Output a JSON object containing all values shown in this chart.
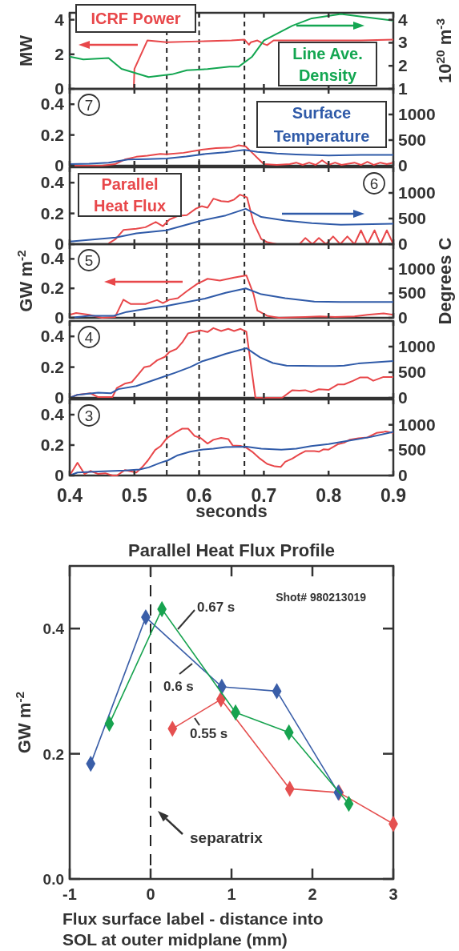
{
  "chart_data": [
    {
      "type": "line",
      "xlim": [
        0.4,
        0.9
      ],
      "xticks": [
        0.4,
        0.5,
        0.6,
        0.7,
        0.8,
        0.9
      ],
      "tick_labels": "y",
      "ylim": [
        0,
        4.4
      ],
      "yticks": [
        0,
        2,
        4
      ],
      "y2lim": [
        1,
        4.3
      ],
      "y2ticks": [
        1,
        2,
        3,
        4
      ],
      "ylabel": "MW",
      "y2label": "10$^{20}$ m$^{-3}$",
      "ref_lines": [
        {
          "axis": "x",
          "value": 0.55,
          "line_style": "dashed",
          "color": "#222222"
        },
        {
          "axis": "x",
          "value": 0.6,
          "line_style": "dashed",
          "color": "#222222"
        },
        {
          "axis": "x",
          "value": 0.67,
          "line_style": "dashed",
          "color": "#222222"
        }
      ],
      "series": [
        {
          "name": "ICRF Power",
          "color": "#e8474a",
          "x": [
            0.499,
            0.5,
            0.52,
            0.55,
            0.6,
            0.65,
            0.67,
            0.677,
            0.68,
            0.69,
            0.7,
            0.705,
            0.715,
            0.75,
            0.8,
            0.85,
            0.9
          ],
          "values": [
            0,
            1.15,
            2.8,
            2.7,
            2.75,
            2.8,
            2.85,
            2.55,
            2.7,
            2.8,
            2.6,
            2.53,
            2.8,
            2.8,
            2.8,
            2.8,
            2.85
          ]
        },
        {
          "name": "Line Ave. Density",
          "color": "#13a651",
          "axis": "y2",
          "x": [
            0.4,
            0.421,
            0.46,
            0.48,
            0.522,
            0.558,
            0.581,
            0.613,
            0.647,
            0.661,
            0.682,
            0.7,
            0.744,
            0.774,
            0.819,
            0.9
          ],
          "values": [
            2.4,
            2.28,
            2.34,
            1.87,
            1.51,
            1.63,
            1.81,
            1.86,
            1.96,
            1.96,
            2.4,
            3.1,
            3.74,
            4.06,
            4.25,
            3.96
          ]
        }
      ]
    },
    {
      "type": "line",
      "xlim": [
        0.4,
        0.9
      ],
      "xticks": [
        0.4,
        0.5,
        0.6,
        0.7,
        0.8,
        0.9
      ],
      "tick_labels": "y",
      "ylim": [
        0,
        0.5
      ],
      "yticks": [
        0,
        0.2,
        0.4
      ],
      "y2lim": [
        0,
        1500
      ],
      "y2ticks": [
        0,
        500,
        1000
      ],
      "annotations": [
        "7"
      ],
      "ref_lines": [
        {
          "axis": "x",
          "value": 0.55,
          "line_style": "dashed",
          "color": "#222222"
        },
        {
          "axis": "x",
          "value": 0.6,
          "line_style": "dashed",
          "color": "#222222"
        },
        {
          "axis": "x",
          "value": 0.67,
          "line_style": "dashed",
          "color": "#222222"
        }
      ],
      "series": [
        {
          "color": "#e8474a",
          "x": [
            0.4,
            0.45,
            0.47,
            0.485,
            0.503,
            0.52,
            0.54,
            0.549,
            0.576,
            0.604,
            0.626,
            0.65,
            0.661,
            0.672,
            0.682,
            0.696,
            0.7,
            0.72,
            0.74,
            0.75,
            0.76,
            0.77,
            0.78,
            0.79,
            0.8,
            0.81,
            0.82,
            0.84,
            0.85,
            0.86,
            0.87,
            0.88,
            0.89,
            0.9
          ],
          "values": [
            0,
            0,
            0.01,
            0.04,
            0.058,
            0.065,
            0.077,
            0.074,
            0.084,
            0.104,
            0.114,
            0.119,
            0.133,
            0.125,
            0.084,
            0.026,
            0.01,
            0.005,
            0.01,
            0.02,
            0.005,
            0.02,
            0.005,
            0.035,
            0.005,
            0.02,
            0.005,
            0.02,
            0.005,
            0.025,
            0.005,
            0.02,
            0.01,
            0.02
          ]
        },
        {
          "name": "Surface Temperature",
          "color": "#2f5aa8",
          "axis": "y2",
          "x": [
            0.4,
            0.43,
            0.46,
            0.49,
            0.52,
            0.55,
            0.58,
            0.61,
            0.64,
            0.67,
            0.69,
            0.72,
            0.75,
            0.8,
            0.85,
            0.9
          ],
          "values": [
            30,
            40,
            60,
            120,
            130,
            140,
            180,
            230,
            260,
            310,
            270,
            240,
            220,
            200,
            210,
            210
          ]
        }
      ]
    },
    {
      "type": "line",
      "xlim": [
        0.4,
        0.9
      ],
      "xticks": [
        0.4,
        0.5,
        0.6,
        0.7,
        0.8,
        0.9
      ],
      "tick_labels": "y",
      "ylim": [
        0,
        0.5
      ],
      "yticks": [
        0,
        0.2,
        0.4
      ],
      "y2lim": [
        0,
        1500
      ],
      "y2ticks": [
        0,
        500,
        1000
      ],
      "annotations": [
        "6"
      ],
      "ref_lines": [
        {
          "axis": "x",
          "value": 0.55,
          "line_style": "dashed",
          "color": "#222222"
        },
        {
          "axis": "x",
          "value": 0.6,
          "line_style": "dashed",
          "color": "#222222"
        },
        {
          "axis": "x",
          "value": 0.67,
          "line_style": "dashed",
          "color": "#222222"
        }
      ],
      "series": [
        {
          "name": "Parallel Heat Flux",
          "color": "#e8474a",
          "x": [
            0.46,
            0.471,
            0.483,
            0.503,
            0.517,
            0.533,
            0.544,
            0.554,
            0.567,
            0.581,
            0.595,
            0.604,
            0.613,
            0.622,
            0.634,
            0.645,
            0.654,
            0.663,
            0.674,
            0.684,
            0.696,
            0.705,
            0.72,
            0.755,
            0.764,
            0.775,
            0.785,
            0.796,
            0.807,
            0.818,
            0.829,
            0.84,
            0.85,
            0.86,
            0.871,
            0.88,
            0.89,
            0.9
          ],
          "values": [
            0.005,
            0.033,
            0.092,
            0.1,
            0.11,
            0.144,
            0.117,
            0.16,
            0.183,
            0.189,
            0.231,
            0.247,
            0.237,
            0.296,
            0.28,
            0.276,
            0.29,
            0.322,
            0.304,
            0.14,
            0.033,
            0.013,
            0,
            0,
            0.04,
            0,
            0.04,
            0,
            0.05,
            0,
            0.05,
            0,
            0.09,
            0,
            0.09,
            0,
            0.09,
            0
          ]
        },
        {
          "color": "#2f5aa8",
          "axis": "y2",
          "x": [
            0.4,
            0.471,
            0.503,
            0.549,
            0.604,
            0.641,
            0.672,
            0.696,
            0.733,
            0.774,
            0.819,
            0.9
          ],
          "values": [
            50,
            130,
            210,
            270,
            460,
            560,
            690,
            530,
            460,
            410,
            380,
            400
          ]
        }
      ]
    },
    {
      "type": "line",
      "xlim": [
        0.4,
        0.9
      ],
      "xticks": [
        0.4,
        0.5,
        0.6,
        0.7,
        0.8,
        0.9
      ],
      "tick_labels": "y",
      "ylim": [
        0,
        0.5
      ],
      "yticks": [
        0,
        0.2,
        0.4
      ],
      "y2lim": [
        0,
        1500
      ],
      "y2ticks": [
        0,
        500,
        1000
      ],
      "ylabel": "GW m$^{-2}$",
      "y2label": "Degrees C",
      "annotations": [
        "5"
      ],
      "ref_lines": [
        {
          "axis": "x",
          "value": 0.55,
          "line_style": "dashed",
          "color": "#222222"
        },
        {
          "axis": "x",
          "value": 0.6,
          "line_style": "dashed",
          "color": "#222222"
        },
        {
          "axis": "x",
          "value": 0.67,
          "line_style": "dashed",
          "color": "#222222"
        }
      ],
      "series": [
        {
          "color": "#e8474a",
          "x": [
            0.4,
            0.41,
            0.43,
            0.45,
            0.47,
            0.483,
            0.494,
            0.517,
            0.535,
            0.544,
            0.554,
            0.567,
            0.581,
            0.597,
            0.613,
            0.632,
            0.654,
            0.673,
            0.684,
            0.69,
            0.705,
            0.723,
            0.764,
            0.787,
            0.81,
            0.84,
            0.86,
            0.885,
            0.9
          ],
          "values": [
            0.02,
            0.033,
            0.02,
            0,
            0.005,
            0.123,
            0.094,
            0.094,
            0.12,
            0.1,
            0.123,
            0.133,
            0.181,
            0.23,
            0.265,
            0.253,
            0.273,
            0.288,
            0.161,
            0.049,
            0.014,
            0,
            0.005,
            0.01,
            0.005,
            0.01,
            0.02,
            0.03,
            0.02
          ]
        },
        {
          "color": "#2f5aa8",
          "axis": "y2",
          "x": [
            0.4,
            0.43,
            0.468,
            0.488,
            0.522,
            0.549,
            0.609,
            0.641,
            0.672,
            0.696,
            0.733,
            0.778,
            0.819,
            0.9
          ],
          "values": [
            0,
            40,
            40,
            120,
            190,
            240,
            390,
            510,
            600,
            480,
            400,
            330,
            320,
            320
          ]
        }
      ]
    },
    {
      "type": "line",
      "xlim": [
        0.4,
        0.9
      ],
      "xticks": [
        0.4,
        0.5,
        0.6,
        0.7,
        0.8,
        0.9
      ],
      "tick_labels": "y",
      "ylim": [
        0,
        0.5
      ],
      "yticks": [
        0,
        0.2,
        0.4
      ],
      "y2lim": [
        0,
        1500
      ],
      "y2ticks": [
        0,
        500,
        1000
      ],
      "annotations": [
        "4"
      ],
      "ref_lines": [
        {
          "axis": "x",
          "value": 0.55,
          "line_style": "dashed",
          "color": "#222222"
        },
        {
          "axis": "x",
          "value": 0.6,
          "line_style": "dashed",
          "color": "#222222"
        },
        {
          "axis": "x",
          "value": 0.67,
          "line_style": "dashed",
          "color": "#222222"
        }
      ],
      "series": [
        {
          "color": "#e8474a",
          "x": [
            0.4,
            0.412,
            0.432,
            0.444,
            0.466,
            0.473,
            0.485,
            0.496,
            0.503,
            0.515,
            0.524,
            0.535,
            0.547,
            0.554,
            0.565,
            0.574,
            0.583,
            0.602,
            0.613,
            0.622,
            0.634,
            0.645,
            0.654,
            0.664,
            0.673,
            0.687,
            0.728,
            0.744,
            0.755,
            0.764,
            0.773,
            0.785,
            0.8,
            0.814,
            0.824,
            0.838,
            0.849,
            0.86,
            0.869,
            0.884,
            0.9
          ],
          "values": [
            0,
            0.02,
            0.03,
            0.005,
            0.005,
            0.065,
            0.092,
            0.103,
            0.137,
            0.199,
            0.207,
            0.244,
            0.267,
            0.298,
            0.318,
            0.361,
            0.42,
            0.439,
            0.428,
            0.454,
            0.435,
            0.449,
            0.435,
            0.449,
            0.43,
            0,
            0,
            0.05,
            0.047,
            0.05,
            0.037,
            0.056,
            0.052,
            0.087,
            0.087,
            0.111,
            0.133,
            0.133,
            0.111,
            0.135,
            0.135
          ]
        },
        {
          "color": "#2f5aa8",
          "axis": "y2",
          "x": [
            0.4,
            0.412,
            0.444,
            0.464,
            0.475,
            0.503,
            0.549,
            0.563,
            0.586,
            0.604,
            0.627,
            0.641,
            0.673,
            0.694,
            0.714,
            0.735,
            0.783,
            0.81,
            0.824,
            0.846,
            0.9
          ],
          "values": [
            0,
            60,
            100,
            90,
            170,
            230,
            430,
            490,
            600,
            710,
            800,
            860,
            970,
            790,
            680,
            630,
            620,
            620,
            630,
            670,
            720
          ]
        }
      ]
    },
    {
      "type": "line",
      "xlim": [
        0.4,
        0.9
      ],
      "xticks": [
        0.4,
        0.5,
        0.6,
        0.7,
        0.8,
        0.9
      ],
      "ylim": [
        0,
        0.5
      ],
      "yticks": [
        0,
        0.2,
        0.4
      ],
      "y2lim": [
        0,
        1500
      ],
      "y2ticks": [
        0,
        500,
        1000
      ],
      "xlabel": "seconds",
      "annotations": [
        "3"
      ],
      "ref_lines": [
        {
          "axis": "x",
          "value": 0.55,
          "line_style": "dashed",
          "color": "#222222"
        },
        {
          "axis": "x",
          "value": 0.6,
          "line_style": "dashed",
          "color": "#222222"
        },
        {
          "axis": "x",
          "value": 0.67,
          "line_style": "dashed",
          "color": "#222222"
        }
      ],
      "series": [
        {
          "color": "#e8474a",
          "x": [
            0.4,
            0.412,
            0.423,
            0.432,
            0.444,
            0.455,
            0.466,
            0.473,
            0.485,
            0.503,
            0.512,
            0.521,
            0.532,
            0.541,
            0.55,
            0.562,
            0.574,
            0.583,
            0.593,
            0.602,
            0.613,
            0.622,
            0.634,
            0.645,
            0.652,
            0.664,
            0.673,
            0.682,
            0.694,
            0.705,
            0.717,
            0.726,
            0.733,
            0.744,
            0.755,
            0.764,
            0.778,
            0.785,
            0.792,
            0.8,
            0.814,
            0.824,
            0.833,
            0.846,
            0.86,
            0.874,
            0.884,
            0.888,
            0.9
          ],
          "values": [
            0,
            0.084,
            0.01,
            0.03,
            0.01,
            0.015,
            0,
            0,
            0.035,
            0.02,
            0.055,
            0.1,
            0.168,
            0.195,
            0.245,
            0.279,
            0.308,
            0.308,
            0.26,
            0.247,
            0.21,
            0.235,
            0.247,
            0.24,
            0.197,
            0.195,
            0.182,
            0.156,
            0.111,
            0.076,
            0.06,
            0.056,
            0.09,
            0.111,
            0.14,
            0.16,
            0.16,
            0.156,
            0.172,
            0.17,
            0.205,
            0.215,
            0.236,
            0.245,
            0.25,
            0.28,
            0.285,
            0.29,
            0.28
          ]
        },
        {
          "color": "#2f5aa8",
          "axis": "y2",
          "x": [
            0.4,
            0.412,
            0.444,
            0.485,
            0.508,
            0.522,
            0.54,
            0.552,
            0.567,
            0.586,
            0.604,
            0.622,
            0.641,
            0.673,
            0.696,
            0.727,
            0.75,
            0.773,
            0.8,
            0.833,
            0.865,
            0.9
          ],
          "values": [
            0,
            60,
            80,
            100,
            120,
            160,
            250,
            300,
            400,
            470,
            510,
            530,
            560,
            570,
            530,
            510,
            530,
            580,
            620,
            690,
            760,
            860
          ]
        }
      ]
    },
    {
      "type": "line",
      "title": "Parallel Heat Flux Profile",
      "xlabel": "Flux surface label - distance into SOL at outer midplane (mm)",
      "ylabel": "GW m$^{-2}$",
      "xlim": [
        -1,
        3
      ],
      "xticks": [
        -1,
        0,
        1,
        2,
        3
      ],
      "ylim": [
        0,
        0.5
      ],
      "yticks": [
        {
          "value": 0,
          "label": "0.0"
        },
        0.2,
        0.4
      ],
      "marker": "diamond",
      "ref_lines": [
        {
          "axis": "x",
          "value": 0,
          "line_style": "dashed",
          "color": "#222222"
        }
      ],
      "annotations": [
        "Shot# 980213019",
        "separatrix"
      ],
      "series": [
        {
          "name": "0.55 s",
          "color": "#e55050",
          "x": [
            0.27,
            0.87,
            1.72,
            2.33,
            3.0
          ],
          "values": [
            0.24,
            0.287,
            0.144,
            0.138,
            0.088
          ]
        },
        {
          "name": "0.6 s",
          "color": "#3a5ea8",
          "x": [
            -0.74,
            -0.06,
            0.88,
            1.56,
            2.32
          ],
          "values": [
            0.184,
            0.418,
            0.307,
            0.3,
            0.138
          ]
        },
        {
          "name": "0.67 s",
          "color": "#17a34f",
          "x": [
            -0.51,
            0.14,
            1.05,
            1.71,
            2.45
          ],
          "values": [
            0.248,
            0.431,
            0.266,
            0.234,
            0.12
          ]
        }
      ]
    }
  ]
}
